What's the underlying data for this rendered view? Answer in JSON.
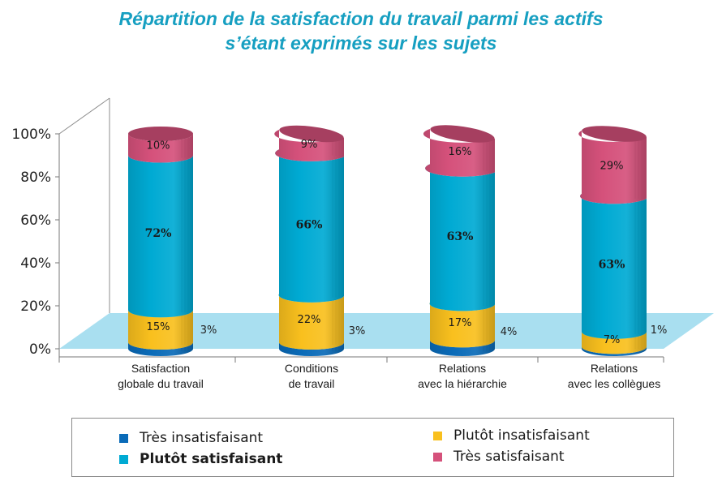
{
  "title_lines": [
    "Répartition de la satisfaction du travail parmi les actifs",
    "s’étant exprimés sur les sujets"
  ],
  "chart_data": {
    "type": "bar",
    "stacked": true,
    "three_d": true,
    "categories": [
      [
        "Satisfaction",
        "globale du travail"
      ],
      [
        "Conditions",
        "de travail"
      ],
      [
        "Relations",
        "avec la hiérarchie"
      ],
      [
        "Relations",
        "avec les collègues"
      ]
    ],
    "series": [
      {
        "name": "Très insatisfaisant",
        "color": "#0a6bb8",
        "values": [
          3,
          3,
          4,
          1
        ],
        "labels": [
          "3%",
          "3%",
          "4%",
          "1%"
        ]
      },
      {
        "name": "Plutôt insatisfaisant",
        "color": "#f9c01e",
        "values": [
          15,
          22,
          17,
          7
        ],
        "labels": [
          "15%",
          "22%",
          "17%",
          "7%"
        ]
      },
      {
        "name": "Plutôt satisfaisant",
        "color": "#00aad3",
        "values": [
          72,
          66,
          63,
          63
        ],
        "labels": [
          "72%",
          "66%",
          "63%",
          "63%"
        ]
      },
      {
        "name": "Très satisfaisant",
        "color": "#d5517b",
        "values": [
          10,
          9,
          16,
          29
        ],
        "labels": [
          "10%",
          "9%",
          "16%",
          "29%"
        ]
      }
    ],
    "ylim": [
      0,
      100
    ],
    "yticks": [
      0,
      20,
      40,
      60,
      80,
      100
    ],
    "ytick_labels": [
      "0%",
      "20%",
      "40%",
      "60%",
      "80%",
      "100%"
    ],
    "floor_color": "#a9dff0",
    "legend": {
      "placement": "bottom",
      "order": [
        "Très insatisfaisant",
        "Plutôt satisfaisant",
        "Plutôt insatisfaisant",
        "Très satisfaisant"
      ],
      "bold": [
        "Plutôt satisfaisant"
      ]
    }
  }
}
